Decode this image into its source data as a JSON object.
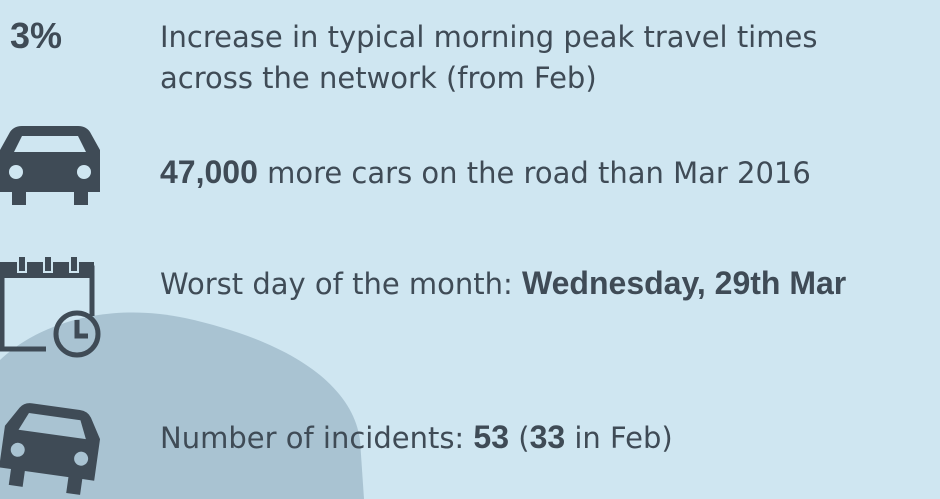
{
  "stats": [
    {
      "figure": "3%",
      "text": [
        "Increase in typical morning peak travel times",
        "across the network (from Feb)"
      ]
    },
    {
      "parts": [
        {
          "text": "47,000",
          "bold": true
        },
        {
          "text": " more cars on the road than Mar 2016",
          "bold": false
        }
      ]
    },
    {
      "parts": [
        {
          "text": "Worst day of the month: ",
          "bold": false
        },
        {
          "text": "Wednesday, 29th Mar",
          "bold": true
        }
      ]
    },
    {
      "parts": [
        {
          "text": "Number of incidents: ",
          "bold": false
        },
        {
          "text": "53",
          "bold": true
        },
        {
          "text": " (",
          "bold": false
        },
        {
          "text": "33",
          "bold": true
        },
        {
          "text": " in Feb)",
          "bold": false
        }
      ]
    }
  ]
}
